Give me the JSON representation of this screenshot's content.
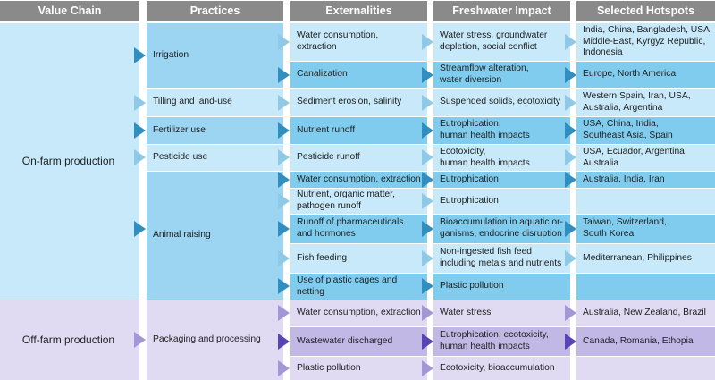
{
  "headers": [
    "Value Chain",
    "Practices",
    "Externalities",
    "Freshwater Impact",
    "Selected Hotspots"
  ],
  "colors": {
    "header": "#8a8a8a",
    "on_farm_light": "#c7e9fa",
    "on_farm_medium": "#9bd5f1",
    "on_farm_dark": "#7fccee",
    "off_farm_light": "#e0dbf2",
    "off_farm_medium": "#c2b8e6",
    "arrow_blue_dark": "#2f8fc0",
    "arrow_blue_light": "#6cb6dc",
    "arrow_purple": "#7a63c8"
  },
  "value_chain": {
    "on_farm": "On-farm production",
    "off_farm": "Off-farm production"
  },
  "practices": [
    "Irrigation",
    "Tilling and land-use",
    "Fertilizer use",
    "Pesticide use",
    "Animal raising",
    "Packaging and processing"
  ],
  "externalities": [
    "Water consumption,\nextraction",
    "Canalization",
    "Sediment erosion, salinity",
    "Nutrient runoff",
    "Pesticide runoff",
    "Water consumption, extraction",
    "Nutrient, organic matter,\npathogen runoff",
    "Runoff of pharmaceuticals\nand hormones",
    "Fish feeding",
    "Use of plastic cages and netting",
    "Water consumption, extraction",
    "Wastewater discharged",
    "Plastic pollution"
  ],
  "impacts": [
    "Water stress, groundwater\ndepletion, social conflict",
    "Streamflow alteration,\nwater diversion",
    "Suspended solids, ecotoxicity",
    "Eutrophication,\nhuman health impacts",
    "Ecotoxicity,\nhuman health impacts",
    "Eutrophication",
    "Eutrophication",
    "Bioaccumulation in aquatic or-\nganisms, endocrine disruption",
    "Non-ingested fish feed\nincluding metals and nutrients",
    "Plastic pollution",
    "Water stress",
    "Eutrophication, ecotoxicity,\nhuman health impacts",
    "Ecotoxicity, bioaccumulation"
  ],
  "hotspots": [
    "India, China, Bangladesh, USA,\nMiddle-East, Kyrgyz Republic,\nIndonesia",
    "Europe, North America",
    "Western Spain, Iran, USA,\nAustralia, Argentina",
    "USA, China, India,\nSoutheast Asia, Spain",
    "USA, Ecuador, Argentina,\nAustralia",
    "Australia, India, Iran",
    "Taiwan, Switzerland,\nSouth Korea",
    "Mediterranean, Philippines",
    "Australia, New Zealand, Brazil",
    "Canada, Romania, Ethopia"
  ]
}
